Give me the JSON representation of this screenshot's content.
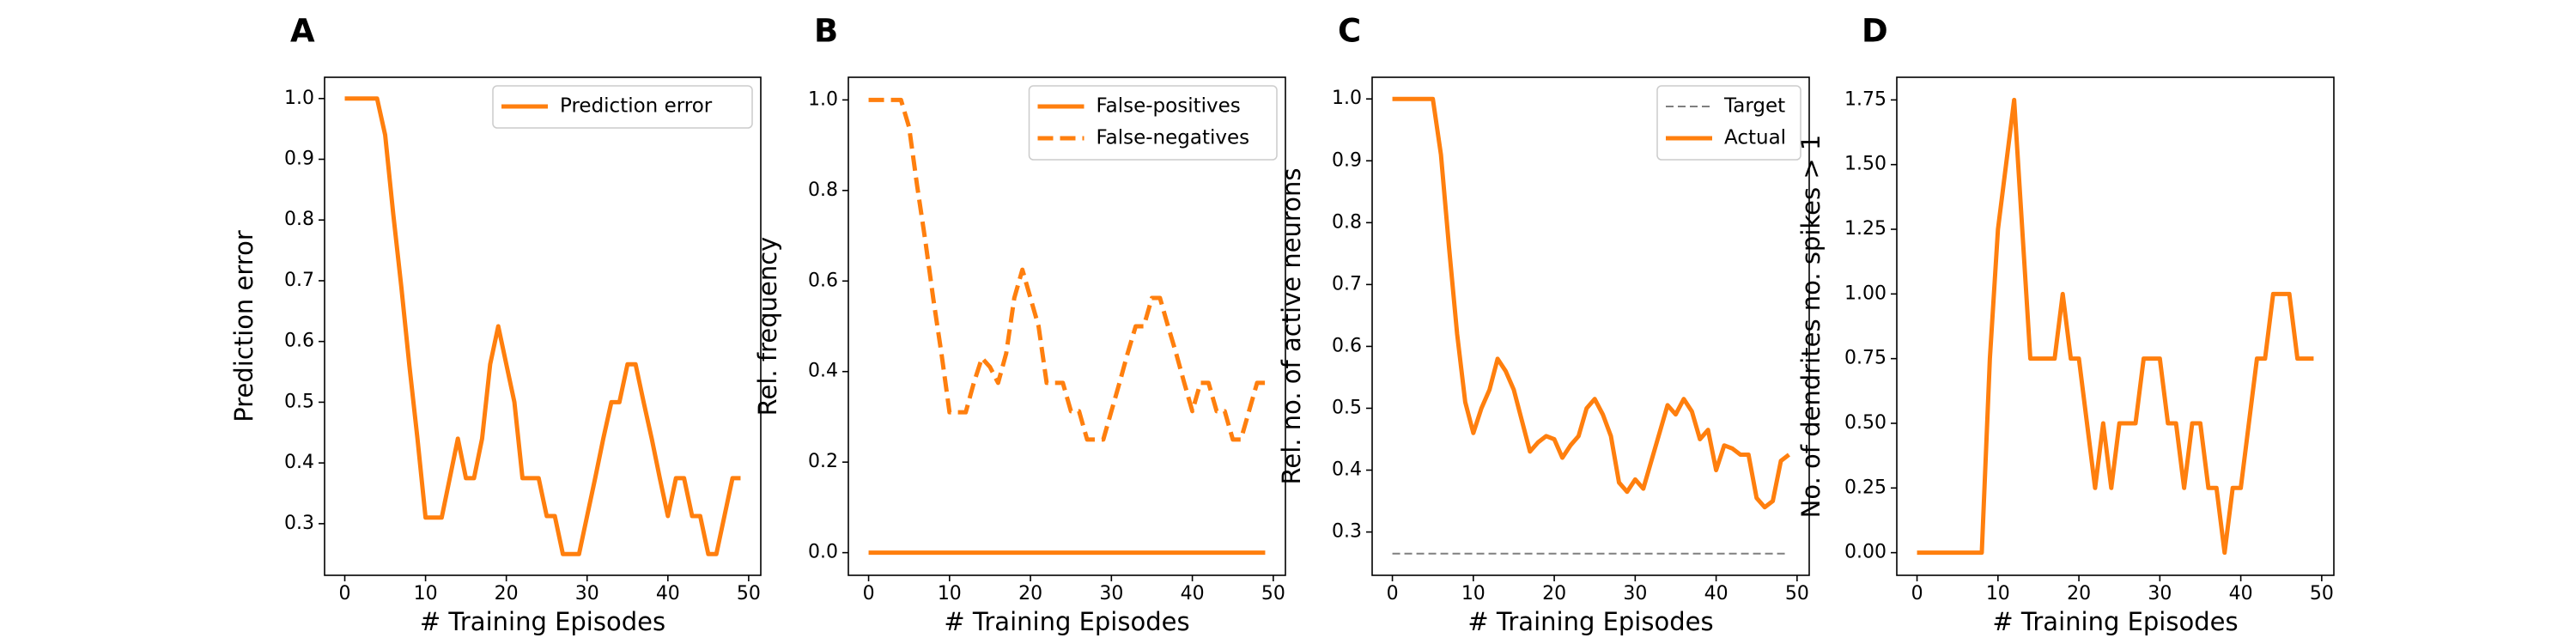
{
  "colors": {
    "series": "#ff7f0e",
    "target": "#7f7f7f",
    "axes": "#000000",
    "legend_border": "#cccccc"
  },
  "chart_data": [
    {
      "panel": "A",
      "type": "line",
      "xlabel": "# Training Episodes",
      "ylabel": "Prediction error",
      "xlim": [
        -2.5,
        51.5
      ],
      "ylim": [
        0.215,
        1.035
      ],
      "xticks": [
        0,
        10,
        20,
        30,
        40,
        50
      ],
      "yticks": [
        0.3,
        0.4,
        0.5,
        0.6,
        0.7,
        0.8,
        0.9,
        1.0
      ],
      "ytick_labels": [
        "0.3",
        "0.4",
        "0.5",
        "0.6",
        "0.7",
        "0.8",
        "0.9",
        "1.0"
      ],
      "legend_position": "upper-right",
      "x": [
        0,
        1,
        2,
        3,
        4,
        5,
        6,
        7,
        8,
        9,
        10,
        11,
        12,
        13,
        14,
        15,
        16,
        17,
        18,
        19,
        20,
        21,
        22,
        23,
        24,
        25,
        26,
        27,
        28,
        29,
        30,
        31,
        32,
        33,
        34,
        35,
        36,
        37,
        38,
        39,
        40,
        41,
        42,
        43,
        44,
        45,
        46,
        47,
        48,
        49
      ],
      "series": [
        {
          "name": "Prediction error",
          "style": "solid",
          "values": [
            1.0,
            1.0,
            1.0,
            1.0,
            1.0,
            0.94,
            0.81,
            0.69,
            0.56,
            0.44,
            0.31,
            0.31,
            0.31,
            0.375,
            0.44,
            0.375,
            0.375,
            0.44,
            0.5625,
            0.625,
            0.5625,
            0.5,
            0.375,
            0.375,
            0.375,
            0.3125,
            0.3125,
            0.25,
            0.25,
            0.25,
            0.3125,
            0.375,
            0.44,
            0.5,
            0.5,
            0.5625,
            0.5625,
            0.5,
            0.44,
            0.375,
            0.3125,
            0.375,
            0.375,
            0.3125,
            0.3125,
            0.25,
            0.25,
            0.3125,
            0.375,
            0.375
          ]
        }
      ]
    },
    {
      "panel": "B",
      "type": "line",
      "xlabel": "# Training Episodes",
      "ylabel": "Rel. frequency",
      "xlim": [
        -2.5,
        51.5
      ],
      "ylim": [
        -0.05,
        1.05
      ],
      "xticks": [
        0,
        10,
        20,
        30,
        40,
        50
      ],
      "yticks": [
        0.0,
        0.2,
        0.4,
        0.6,
        0.8,
        1.0
      ],
      "ytick_labels": [
        "0.0",
        "0.2",
        "0.4",
        "0.6",
        "0.8",
        "1.0"
      ],
      "legend_position": "upper-right",
      "x": [
        0,
        1,
        2,
        3,
        4,
        5,
        6,
        7,
        8,
        9,
        10,
        11,
        12,
        13,
        14,
        15,
        16,
        17,
        18,
        19,
        20,
        21,
        22,
        23,
        24,
        25,
        26,
        27,
        28,
        29,
        30,
        31,
        32,
        33,
        34,
        35,
        36,
        37,
        38,
        39,
        40,
        41,
        42,
        43,
        44,
        45,
        46,
        47,
        48,
        49
      ],
      "series": [
        {
          "name": "False-positives",
          "style": "solid",
          "values": [
            0,
            0,
            0,
            0,
            0,
            0,
            0,
            0,
            0,
            0,
            0,
            0,
            0,
            0,
            0,
            0,
            0,
            0,
            0,
            0,
            0,
            0,
            0,
            0,
            0,
            0,
            0,
            0,
            0,
            0,
            0,
            0,
            0,
            0,
            0,
            0,
            0,
            0,
            0,
            0,
            0,
            0,
            0,
            0,
            0,
            0,
            0,
            0,
            0,
            0
          ]
        },
        {
          "name": "False-negatives",
          "style": "dashed",
          "values": [
            1.0,
            1.0,
            1.0,
            1.0,
            1.0,
            0.94,
            0.81,
            0.69,
            0.56,
            0.44,
            0.31,
            0.31,
            0.31,
            0.375,
            0.43,
            0.41,
            0.375,
            0.44,
            0.5625,
            0.625,
            0.5625,
            0.5,
            0.375,
            0.375,
            0.375,
            0.3125,
            0.3125,
            0.25,
            0.25,
            0.25,
            0.3125,
            0.375,
            0.44,
            0.5,
            0.5,
            0.5625,
            0.5625,
            0.5,
            0.44,
            0.375,
            0.3125,
            0.375,
            0.375,
            0.3125,
            0.3125,
            0.25,
            0.25,
            0.3125,
            0.375,
            0.375
          ]
        }
      ]
    },
    {
      "panel": "C",
      "type": "line",
      "xlabel": "# Training Episodes",
      "ylabel": "Rel. no. of active neurons",
      "xlim": [
        -2.5,
        51.5
      ],
      "ylim": [
        0.23,
        1.035
      ],
      "xticks": [
        0,
        10,
        20,
        30,
        40,
        50
      ],
      "yticks": [
        0.3,
        0.4,
        0.5,
        0.6,
        0.7,
        0.8,
        0.9,
        1.0
      ],
      "ytick_labels": [
        "0.3",
        "0.4",
        "0.5",
        "0.6",
        "0.7",
        "0.8",
        "0.9",
        "1.0"
      ],
      "legend_position": "upper-right",
      "x": [
        0,
        1,
        2,
        3,
        4,
        5,
        6,
        7,
        8,
        9,
        10,
        11,
        12,
        13,
        14,
        15,
        16,
        17,
        18,
        19,
        20,
        21,
        22,
        23,
        24,
        25,
        26,
        27,
        28,
        29,
        30,
        31,
        32,
        33,
        34,
        35,
        36,
        37,
        38,
        39,
        40,
        41,
        42,
        43,
        44,
        45,
        46,
        47,
        48,
        49
      ],
      "series": [
        {
          "name": "Target",
          "style": "dashed-thin",
          "values": [
            0.265,
            0.265,
            0.265,
            0.265,
            0.265,
            0.265,
            0.265,
            0.265,
            0.265,
            0.265,
            0.265,
            0.265,
            0.265,
            0.265,
            0.265,
            0.265,
            0.265,
            0.265,
            0.265,
            0.265,
            0.265,
            0.265,
            0.265,
            0.265,
            0.265,
            0.265,
            0.265,
            0.265,
            0.265,
            0.265,
            0.265,
            0.265,
            0.265,
            0.265,
            0.265,
            0.265,
            0.265,
            0.265,
            0.265,
            0.265,
            0.265,
            0.265,
            0.265,
            0.265,
            0.265,
            0.265,
            0.265,
            0.265,
            0.265,
            0.265
          ]
        },
        {
          "name": "Actual",
          "style": "solid",
          "values": [
            1.0,
            1.0,
            1.0,
            1.0,
            1.0,
            1.0,
            0.91,
            0.76,
            0.62,
            0.51,
            0.46,
            0.5,
            0.53,
            0.58,
            0.56,
            0.53,
            0.48,
            0.43,
            0.445,
            0.455,
            0.45,
            0.42,
            0.44,
            0.455,
            0.5,
            0.515,
            0.49,
            0.455,
            0.38,
            0.365,
            0.385,
            0.37,
            0.415,
            0.46,
            0.505,
            0.49,
            0.515,
            0.495,
            0.45,
            0.465,
            0.4,
            0.44,
            0.435,
            0.425,
            0.425,
            0.355,
            0.34,
            0.35,
            0.415,
            0.425
          ]
        }
      ]
    },
    {
      "panel": "D",
      "type": "line",
      "xlabel": "# Training Episodes",
      "ylabel": "No. of dendrites no. spikes > 1",
      "xlim": [
        -2.5,
        51.5
      ],
      "ylim": [
        -0.0875,
        1.8375
      ],
      "xticks": [
        0,
        10,
        20,
        30,
        40,
        50
      ],
      "yticks": [
        0.0,
        0.25,
        0.5,
        0.75,
        1.0,
        1.25,
        1.5,
        1.75
      ],
      "ytick_labels": [
        "0.00",
        "0.25",
        "0.50",
        "0.75",
        "1.00",
        "1.25",
        "1.50",
        "1.75"
      ],
      "legend_position": "none",
      "x": [
        0,
        1,
        2,
        3,
        4,
        5,
        6,
        7,
        8,
        9,
        10,
        11,
        12,
        13,
        14,
        15,
        16,
        17,
        18,
        19,
        20,
        21,
        22,
        23,
        24,
        25,
        26,
        27,
        28,
        29,
        30,
        31,
        32,
        33,
        34,
        35,
        36,
        37,
        38,
        39,
        40,
        41,
        42,
        43,
        44,
        45,
        46,
        47,
        48,
        49
      ],
      "series": [
        {
          "name": "",
          "style": "solid",
          "values": [
            0,
            0,
            0,
            0,
            0,
            0,
            0,
            0,
            0,
            0.75,
            1.25,
            1.5,
            1.75,
            1.25,
            0.75,
            0.75,
            0.75,
            0.75,
            1.0,
            0.75,
            0.75,
            0.5,
            0.25,
            0.5,
            0.25,
            0.5,
            0.5,
            0.5,
            0.75,
            0.75,
            0.75,
            0.5,
            0.5,
            0.25,
            0.5,
            0.5,
            0.25,
            0.25,
            0.0,
            0.25,
            0.25,
            0.5,
            0.75,
            0.75,
            1.0,
            1.0,
            1.0,
            0.75,
            0.75,
            0.75
          ]
        }
      ]
    }
  ]
}
